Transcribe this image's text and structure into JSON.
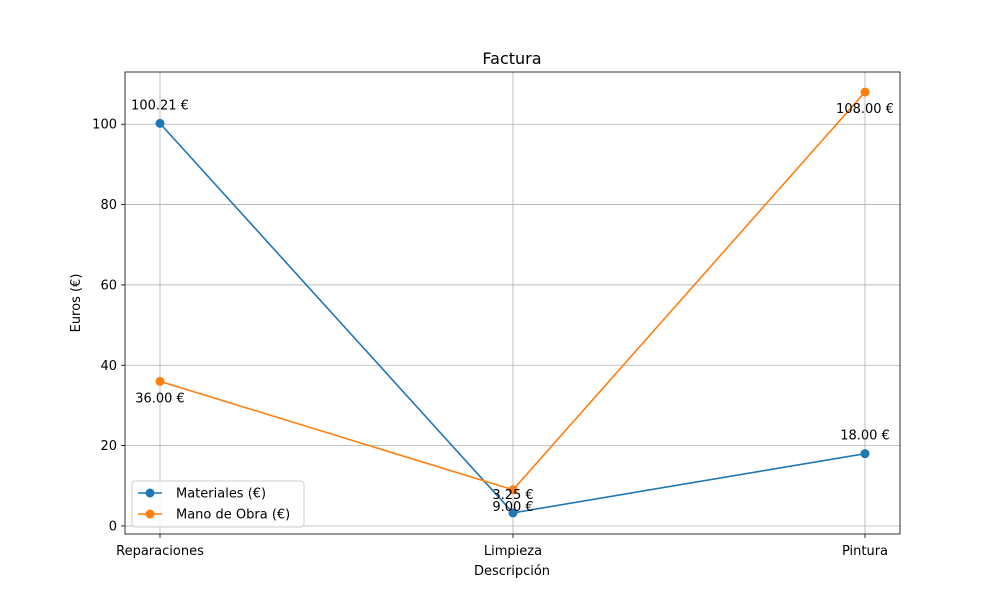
{
  "chart_data": {
    "type": "line",
    "title": "Factura",
    "xlabel": "Descripción",
    "ylabel": "Euros (€)",
    "categories": [
      "Reparaciones",
      "Limpieza",
      "Pintura"
    ],
    "ylim": [
      -2,
      113
    ],
    "yticks": [
      0,
      20,
      40,
      60,
      80,
      100
    ],
    "grid": true,
    "legend_position": "lower-left",
    "series": [
      {
        "name": "Materiales (€)",
        "color": "#1f77b4",
        "values": [
          100.21,
          3.25,
          18.0
        ],
        "labels": [
          "100.21 €",
          "3.25 €",
          "18.00 €"
        ],
        "label_side": [
          "above",
          "above",
          "above"
        ]
      },
      {
        "name": "Mano de Obra (€)",
        "color": "#ff7f0e",
        "values": [
          36.0,
          9.0,
          108.0
        ],
        "labels": [
          "36.00 €",
          "9.00 €",
          "108.00 €"
        ],
        "label_side": [
          "below",
          "below",
          "below"
        ]
      }
    ]
  }
}
